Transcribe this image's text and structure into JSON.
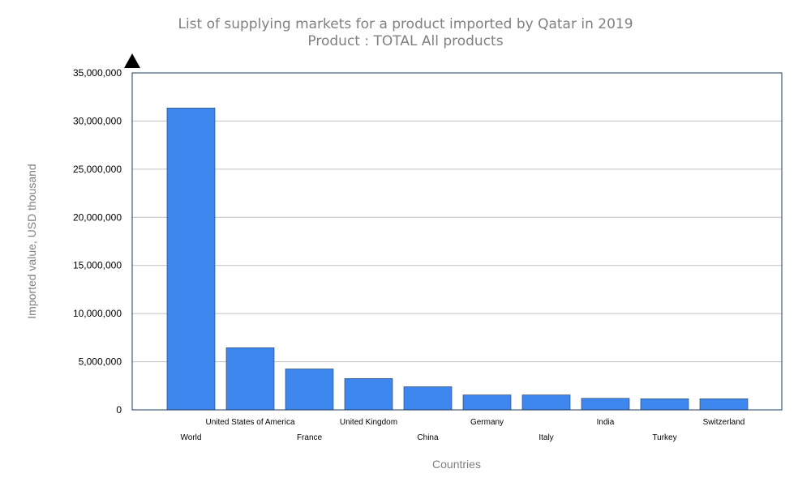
{
  "chart_data": {
    "type": "bar",
    "title": "List of supplying markets for a product imported by Qatar in 2019",
    "subtitle": "Product : TOTAL All products",
    "xlabel": "Countries",
    "ylabel": "Imported value, USD thousand",
    "ylim": [
      0,
      35000000
    ],
    "yticks": [
      0,
      5000000,
      10000000,
      15000000,
      20000000,
      25000000,
      30000000,
      35000000
    ],
    "ytick_labels": [
      "0",
      "5,000,000",
      "10,000,000",
      "15,000,000",
      "20,000,000",
      "25,000,000",
      "30,000,000",
      "35,000,000"
    ],
    "grid": true,
    "categories": [
      "World",
      "United States of America",
      "France",
      "United Kingdom",
      "China",
      "Germany",
      "Italy",
      "India",
      "Turkey",
      "Switzerland"
    ],
    "values": [
      31350000,
      6450000,
      4250000,
      3250000,
      2400000,
      1550000,
      1550000,
      1200000,
      1150000,
      1150000
    ],
    "bar_color": "#3d87ee"
  }
}
